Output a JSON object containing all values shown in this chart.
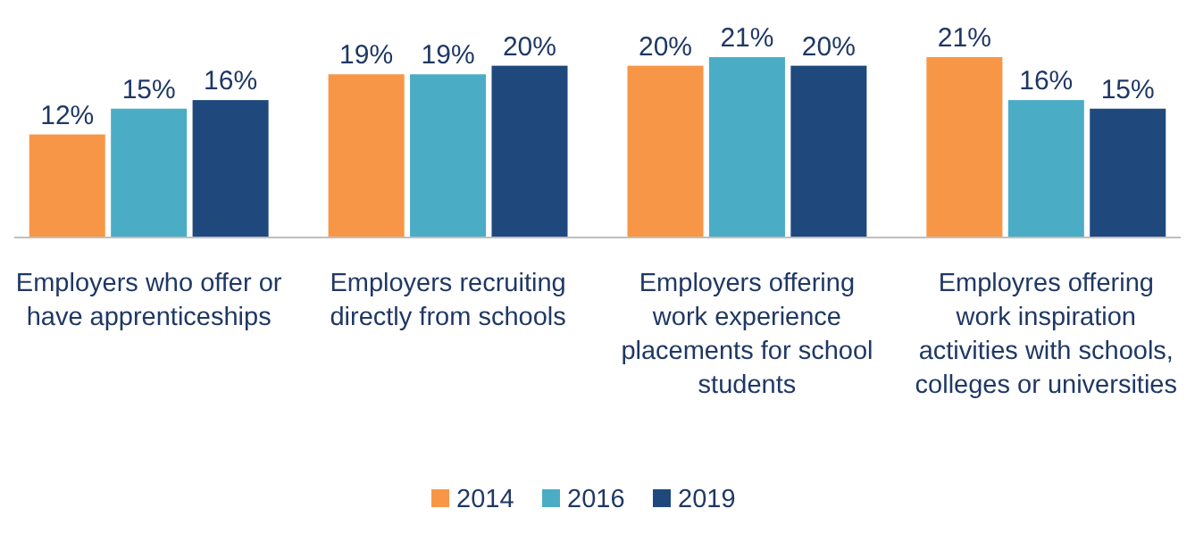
{
  "chart_data": {
    "type": "bar",
    "categories": [
      "Employers who offer or have apprenticeships",
      "Employers recruiting directly from schools",
      "Employers offering work experience placements for school students",
      "Employres offering work inspiration activities with schools, colleges or universities"
    ],
    "series": [
      {
        "name": "2014",
        "color": "#f79646",
        "values": [
          12,
          19,
          20,
          21
        ],
        "value_labels": [
          "12%",
          "19%",
          "20%",
          "21%"
        ]
      },
      {
        "name": "2016",
        "color": "#4bacc6",
        "values": [
          15,
          19,
          21,
          16
        ],
        "value_labels": [
          "15%",
          "19%",
          "21%",
          "16%"
        ]
      },
      {
        "name": "2019",
        "color": "#1f497d",
        "values": [
          16,
          20,
          20,
          15
        ],
        "value_labels": [
          "16%",
          "20%",
          "20%",
          "15%"
        ]
      }
    ],
    "legend": "bottom",
    "grid": false
  }
}
